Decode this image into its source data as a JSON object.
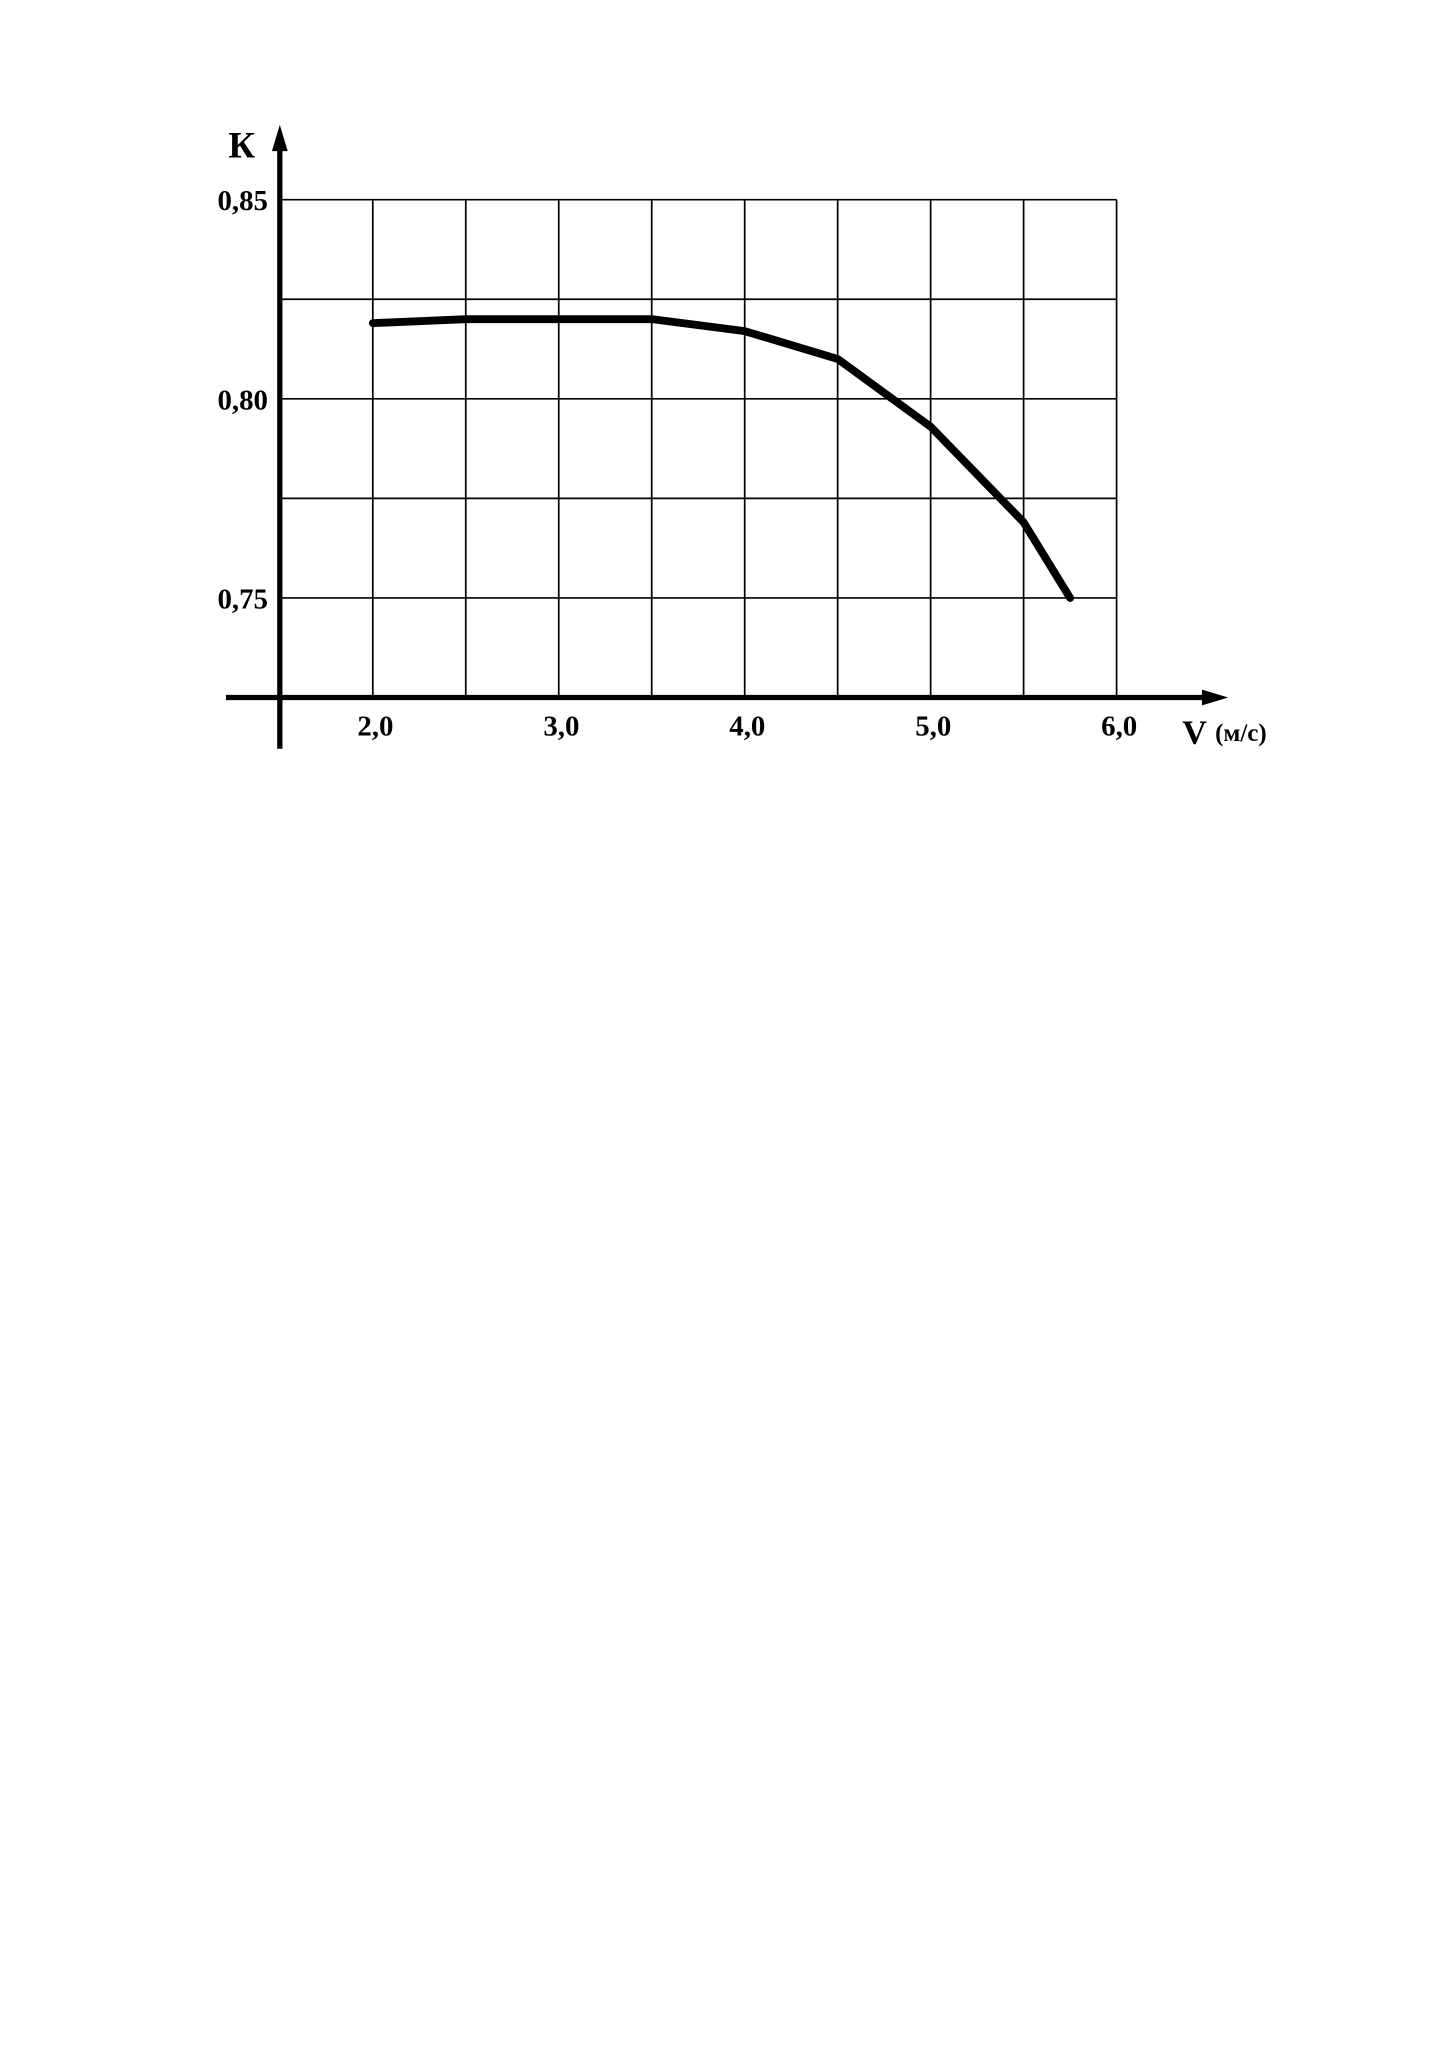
{
  "chart_data": {
    "type": "line",
    "y_label": "К",
    "x_label": "V",
    "x_unit": "(м/с)",
    "x": [
      2.0,
      2.5,
      3.0,
      3.5,
      4.0,
      4.5,
      5.0,
      5.5,
      5.75
    ],
    "series": [
      {
        "color": "#000000",
        "values": [
          0.819,
          0.82,
          0.82,
          0.82,
          0.817,
          0.81,
          0.793,
          0.769,
          0.75
        ]
      }
    ],
    "xlim": [
      1.5,
      6.0
    ],
    "ylim": [
      0.725,
      0.85
    ],
    "xticks": [
      {
        "value": 2.0,
        "label": "2,0"
      },
      {
        "value": 3.0,
        "label": "3,0"
      },
      {
        "value": 4.0,
        "label": "4,0"
      },
      {
        "value": 5.0,
        "label": "5,0"
      },
      {
        "value": 6.0,
        "label": "6,0"
      }
    ],
    "yticks": [
      {
        "value": 0.75,
        "label": "0,75"
      },
      {
        "value": 0.8,
        "label": "0,80"
      },
      {
        "value": 0.85,
        "label": "0,85"
      }
    ],
    "x_minor_grid": [
      2.5,
      3.5,
      4.5,
      5.5
    ],
    "y_minor_grid": [
      0.775,
      0.825
    ],
    "grid": true
  }
}
